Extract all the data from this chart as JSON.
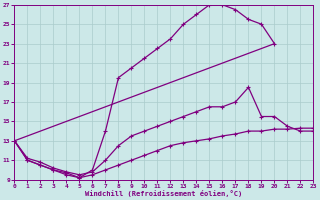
{
  "xlabel": "Windchill (Refroidissement éolien,°C)",
  "bg_color": "#cce8e8",
  "line_color": "#800080",
  "grid_color": "#aacccc",
  "xlim": [
    0,
    23
  ],
  "ylim": [
    9,
    27
  ],
  "xticks": [
    0,
    1,
    2,
    3,
    4,
    5,
    6,
    7,
    8,
    9,
    10,
    11,
    12,
    13,
    14,
    15,
    16,
    17,
    18,
    19,
    20,
    21,
    22,
    23
  ],
  "yticks": [
    9,
    11,
    13,
    15,
    17,
    19,
    21,
    23,
    25,
    27
  ],
  "curve1_x": [
    0,
    1,
    2,
    3,
    4,
    5,
    6,
    7,
    8,
    9,
    10,
    11,
    12,
    13,
    14,
    15,
    16,
    17,
    18,
    19,
    20
  ],
  "curve1_y": [
    13,
    11,
    10.5,
    10.0,
    9.7,
    9.2,
    10.0,
    14.0,
    19.5,
    20.5,
    21.5,
    22.5,
    23.5,
    25.0,
    26.0,
    27.0,
    27.0,
    26.5,
    25.5,
    25.0,
    23.0
  ],
  "curve2_x": [
    0,
    20
  ],
  "curve2_y": [
    13,
    23.0
  ],
  "curve3_x": [
    0,
    1,
    2,
    3,
    4,
    5,
    6,
    7,
    8,
    9,
    10,
    11,
    12,
    13,
    14,
    15,
    16,
    17,
    18,
    19,
    20,
    21,
    22,
    23
  ],
  "curve3_y": [
    13,
    11.2,
    10.8,
    10.2,
    9.8,
    9.5,
    9.8,
    11.0,
    12.5,
    13.5,
    14.0,
    14.5,
    15.0,
    15.5,
    16.0,
    16.5,
    16.5,
    17.0,
    18.5,
    15.5,
    15.5,
    14.5,
    14.0,
    14.0
  ],
  "curve4_x": [
    0,
    1,
    2,
    3,
    4,
    5,
    6,
    7,
    8,
    9,
    10,
    11,
    12,
    13,
    14,
    15,
    16,
    17,
    18,
    19,
    20,
    21,
    22,
    23
  ],
  "curve4_y": [
    13,
    11.0,
    10.5,
    10.0,
    9.5,
    9.2,
    9.5,
    10.0,
    10.5,
    11.0,
    11.5,
    12.0,
    12.5,
    12.8,
    13.0,
    13.2,
    13.5,
    13.7,
    14.0,
    14.0,
    14.2,
    14.2,
    14.3,
    14.3
  ]
}
